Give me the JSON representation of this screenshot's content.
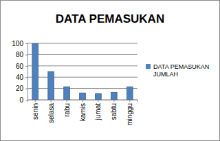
{
  "chart_data": {
    "type": "bar",
    "title": "DATA PEMASUKAN",
    "categories": [
      "senin",
      "selasa",
      "rabu",
      "kamis",
      "jumat",
      "sabtu",
      "minggu"
    ],
    "series": [
      {
        "name": "DATA PEMASUKAN JUMLAH",
        "color": "#4f81bd",
        "values": [
          100,
          50,
          23,
          12,
          11,
          13,
          23
        ]
      }
    ],
    "ylim": [
      0,
      100
    ],
    "yticks": [
      0,
      20,
      40,
      60,
      80,
      100
    ],
    "grid": true,
    "legend": "right"
  }
}
